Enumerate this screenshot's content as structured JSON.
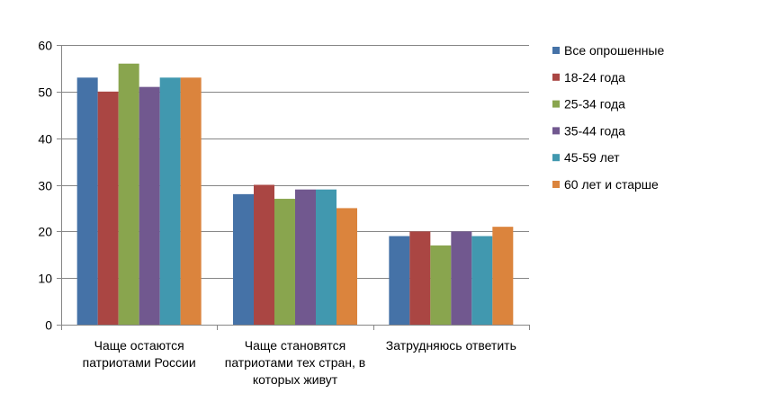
{
  "chart_data": {
    "type": "bar",
    "title": "",
    "xlabel": "",
    "ylabel": "",
    "ylim": [
      0,
      60
    ],
    "yticks": [
      0,
      10,
      20,
      30,
      40,
      50,
      60
    ],
    "grid": true,
    "legend_position": "right",
    "categories": [
      [
        "Чаще остаются",
        "патриотами России"
      ],
      [
        "Чаще становятся",
        "патриотами тех стран, в",
        "которых живут"
      ],
      [
        "Затрудняюсь ответить"
      ]
    ],
    "series": [
      {
        "name": "Все опрошенные",
        "color": "#4572A7",
        "values": [
          53,
          28,
          19
        ]
      },
      {
        "name": "18-24 года",
        "color": "#AA4643",
        "values": [
          50,
          30,
          20
        ]
      },
      {
        "name": "25-34 года",
        "color": "#89A54E",
        "values": [
          56,
          27,
          17
        ]
      },
      {
        "name": "35-44 года",
        "color": "#71588F",
        "values": [
          51,
          29,
          20
        ]
      },
      {
        "name": "45-59 лет",
        "color": "#4198AF",
        "values": [
          53,
          29,
          19
        ]
      },
      {
        "name": "60 лет и старше",
        "color": "#DB843D",
        "values": [
          53,
          25,
          21
        ]
      }
    ]
  }
}
